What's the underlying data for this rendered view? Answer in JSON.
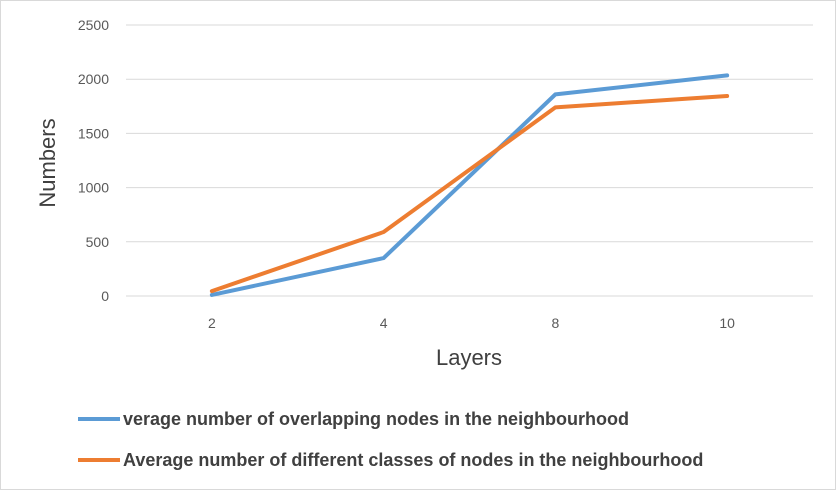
{
  "chart_data": {
    "type": "line",
    "categories": [
      "2",
      "4",
      "8",
      "10"
    ],
    "series": [
      {
        "name": "verage number of overlapping nodes in the neighbourhood",
        "color": "#5b9bd5",
        "values": [
          10,
          350,
          1860,
          2035
        ]
      },
      {
        "name": "Average number of different classes of nodes in the neighbourhood",
        "color": "#ed7d31",
        "values": [
          45,
          590,
          1740,
          1845
        ]
      }
    ],
    "xlabel": "Layers",
    "ylabel": "Numbers",
    "ylim": [
      0,
      2500
    ],
    "yticks": [
      0,
      500,
      1000,
      1500,
      2000,
      2500
    ],
    "grid": true,
    "legend": "bottom"
  }
}
